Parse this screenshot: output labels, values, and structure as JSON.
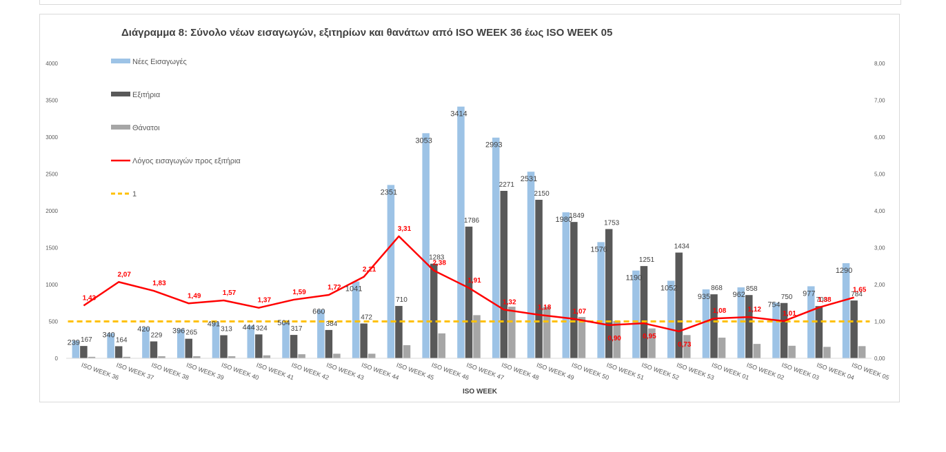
{
  "chart_data": {
    "type": "bar",
    "title": "Διάγραμμα 8: Σύνολο νέων εισαγωγών, εξιτηρίων και θανάτων από ISO WEEK 36 έως ISO WEEK 05",
    "xlabel": "ISO WEEK",
    "ylabel": "",
    "ylim": [
      0,
      4000
    ],
    "y2lim": [
      0,
      8
    ],
    "yticks": [
      "0",
      "500",
      "1000",
      "1500",
      "2000",
      "2500",
      "3000",
      "3500",
      "4000"
    ],
    "y2ticks": [
      "0,00",
      "1,00",
      "2,00",
      "3,00",
      "4,00",
      "5,00",
      "6,00",
      "7,00",
      "8,00"
    ],
    "grid": false,
    "legend_position": "top-left",
    "categories": [
      "ISO WEEK 36",
      "ISO WEEK 37",
      "ISO WEEK 38",
      "ISO WEEK 39",
      "ISO WEEK 40",
      "ISO WEEK 41",
      "ISO WEEK 42",
      "ISO WEEK 43",
      "ISO WEEK 44",
      "ISO WEEK 45",
      "ISO WEEK 46",
      "ISO WEEK 47",
      "ISO WEEK 48",
      "ISO WEEK 49",
      "ISO WEEK 50",
      "ISO WEEK 51",
      "ISO WEEK 52",
      "ISO WEEK 53",
      "ISO WEEK 01",
      "ISO WEEK 02",
      "ISO WEEK 03",
      "ISO WEEK 04",
      "ISO WEEK 05"
    ],
    "series": [
      {
        "name": "Νέες Εισαγωγές",
        "type": "bar",
        "color": "#9dc3e6",
        "values": [
          239,
          340,
          420,
          396,
          491,
          444,
          504,
          660,
          1041,
          2351,
          3053,
          3414,
          2993,
          2531,
          1980,
          1576,
          1190,
          1052,
          935,
          962,
          754,
          977,
          1290
        ],
        "labels": [
          "239",
          "340",
          "420",
          "396",
          "491",
          "444",
          "504",
          "660",
          "1041",
          "2351",
          "3053",
          "3414",
          "2993",
          "2531",
          "1980",
          "1576",
          "1190",
          "1052",
          "935",
          "962",
          "754",
          "977",
          "1290"
        ]
      },
      {
        "name": "Εξιτήρια",
        "type": "bar",
        "color": "#595959",
        "values": [
          167,
          164,
          229,
          265,
          313,
          324,
          317,
          384,
          472,
          710,
          1283,
          1786,
          2271,
          2150,
          1849,
          1753,
          1251,
          1434,
          868,
          858,
          750,
          708,
          784
        ],
        "labels": [
          "167",
          "164",
          "229",
          "265",
          "313",
          "324",
          "317",
          "384",
          "472",
          "710",
          "1283",
          "1786",
          "2271",
          "2150",
          "1849",
          "1753",
          "1251",
          "1434",
          "868",
          "858",
          "750",
          "708",
          "784"
        ]
      },
      {
        "name": "Θάνατοι",
        "type": "bar",
        "color": "#a6a6a6",
        "values": [
          20,
          20,
          28,
          28,
          28,
          40,
          55,
          62,
          62,
          178,
          338,
          585,
          700,
          700,
          560,
          505,
          405,
          315,
          280,
          195,
          170,
          155,
          165
        ],
        "labels": []
      },
      {
        "name": "Λόγος εισαγωγών προς εξιτήρια",
        "type": "line",
        "axis": "right",
        "color": "#ff0000",
        "values": [
          1.43,
          2.07,
          1.83,
          1.49,
          1.57,
          1.37,
          1.59,
          1.72,
          2.21,
          3.31,
          2.38,
          1.91,
          1.32,
          1.18,
          1.07,
          0.9,
          0.95,
          0.73,
          1.08,
          1.12,
          1.01,
          1.38,
          1.65
        ],
        "labels": [
          "1,43",
          "2,07",
          "1,83",
          "1,49",
          "1,57",
          "1,37",
          "1,59",
          "1,72",
          "2,21",
          "3,31",
          "2,38",
          "1,91",
          "1,32",
          "1,18",
          "1,07",
          "0,90",
          "0,95",
          "0,73",
          "1,08",
          "1,12",
          "1,01",
          "1,38",
          "1,65"
        ]
      },
      {
        "name": "1",
        "type": "line",
        "axis": "right",
        "color": "#ffc000",
        "dashed": true,
        "values": [
          1,
          1,
          1,
          1,
          1,
          1,
          1,
          1,
          1,
          1,
          1,
          1,
          1,
          1,
          1,
          1,
          1,
          1,
          1,
          1,
          1,
          1,
          1
        ]
      }
    ]
  }
}
